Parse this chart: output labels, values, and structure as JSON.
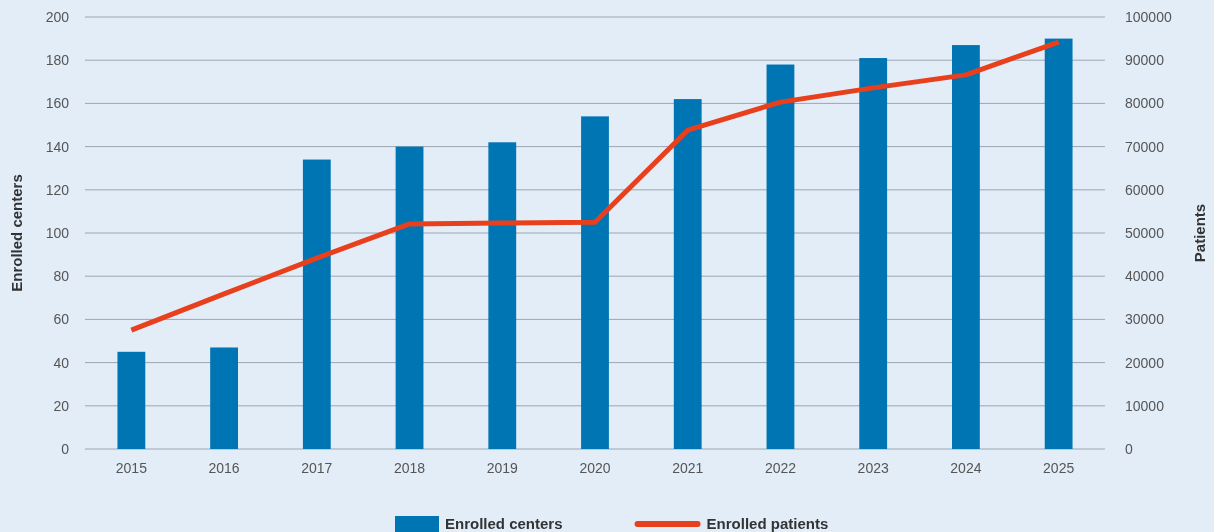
{
  "chart_data": {
    "type": "bar",
    "categories": [
      "2015",
      "2016",
      "2017",
      "2018",
      "2019",
      "2020",
      "2021",
      "2022",
      "2023",
      "2024",
      "2025"
    ],
    "series": [
      {
        "name": "Enrolled centers",
        "color": "#0075b4",
        "values": [
          45,
          47,
          134,
          140,
          142,
          154,
          162,
          178,
          181,
          187,
          190
        ]
      },
      {
        "name": "Enrolled patients",
        "type": "line",
        "axis": "y2",
        "color": "#e8401c",
        "values": [
          27500,
          35900,
          44200,
          52100,
          52300,
          52500,
          73800,
          80300,
          83600,
          86600,
          94200
        ]
      }
    ],
    "ylabel": "Enrolled centers",
    "y2label": "Patients",
    "ylim": [
      0,
      200
    ],
    "yticks": [
      0,
      20,
      40,
      60,
      80,
      100,
      120,
      140,
      160,
      180,
      200
    ],
    "y2lim": [
      0,
      100000
    ],
    "y2ticks": [
      0,
      10000,
      20000,
      30000,
      40000,
      50000,
      60000,
      70000,
      80000,
      90000,
      100000
    ],
    "grid": "y",
    "legend": "bottom",
    "marker": "none",
    "line_style": "solid"
  }
}
